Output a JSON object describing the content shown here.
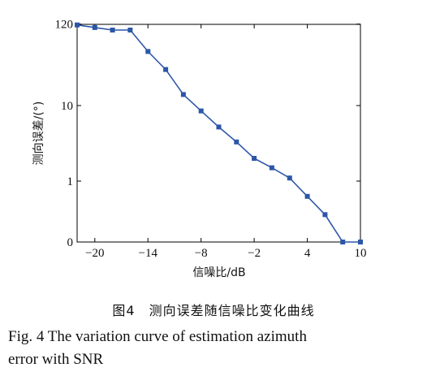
{
  "chart_data": {
    "type": "line",
    "xlabel": "信噪比/dB",
    "ylabel": "测向误差/(°)",
    "xlim": [
      -22,
      10
    ],
    "x_ticks": [
      -20,
      -14,
      -8,
      -2,
      4,
      10
    ],
    "x_tick_labels": [
      "−20",
      "−14",
      "−8",
      "−2",
      "4",
      "10"
    ],
    "y_scale": "custom-log (0, 1, 10, 120)",
    "y_ticks": [
      0,
      1,
      10,
      120
    ],
    "y_tick_labels": [
      "0",
      "1",
      "10",
      "120"
    ],
    "grid": false,
    "color": "#2c56a8",
    "marker": "square",
    "x": [
      -22,
      -20,
      -18,
      -16,
      -14,
      -12,
      -10,
      -8,
      -6,
      -4,
      -2,
      0,
      2,
      4,
      6,
      8,
      10
    ],
    "y": [
      117,
      108,
      100,
      100,
      52,
      30,
      14,
      8.5,
      5.2,
      3.3,
      2.0,
      1.5,
      1.1,
      0.75,
      0.45,
      0.0,
      0.0
    ]
  },
  "caption": {
    "cn": "图4　测向误差随信噪比变化曲线",
    "en_line1": "Fig. 4  The variation curve of estimation azimuth",
    "en_line2": "error with SNR"
  }
}
